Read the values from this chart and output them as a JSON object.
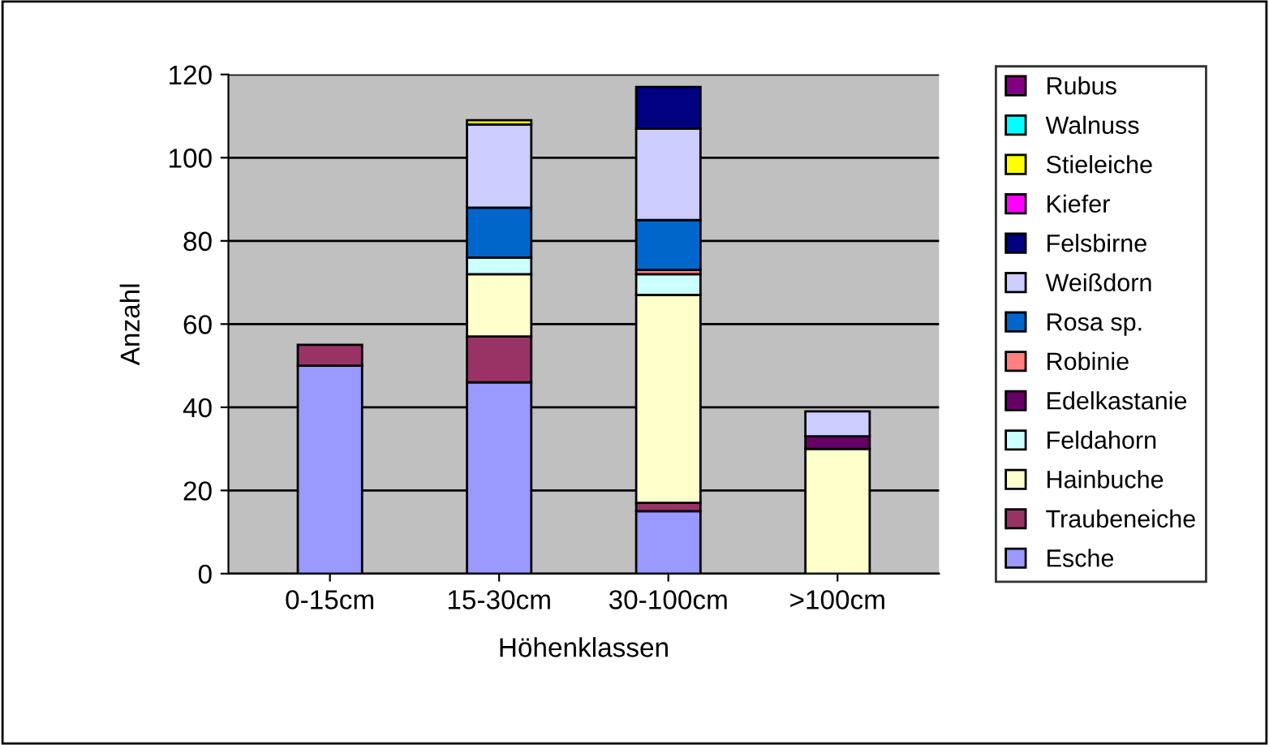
{
  "chart_data": {
    "type": "bar",
    "stacked": true,
    "xlabel": "Höhenklassen",
    "ylabel": "Anzahl",
    "categories": [
      "0-15cm",
      "15-30cm",
      "30-100cm",
      ">100cm"
    ],
    "series": [
      {
        "name": "Esche",
        "color": "#9999ff",
        "values": [
          50,
          46,
          15,
          0
        ]
      },
      {
        "name": "Traubeneiche",
        "color": "#993366",
        "values": [
          5,
          11,
          2,
          0
        ]
      },
      {
        "name": "Hainbuche",
        "color": "#ffffcc",
        "values": [
          0,
          15,
          50,
          30
        ]
      },
      {
        "name": "Feldahorn",
        "color": "#ccffff",
        "values": [
          0,
          4,
          5,
          0
        ]
      },
      {
        "name": "Edelkastanie",
        "color": "#660066",
        "values": [
          0,
          0,
          0,
          3
        ]
      },
      {
        "name": "Robinie",
        "color": "#ff8080",
        "values": [
          0,
          0,
          1,
          0
        ]
      },
      {
        "name": "Rosa sp.",
        "color": "#0066cc",
        "values": [
          0,
          12,
          12,
          0
        ]
      },
      {
        "name": "Weißdorn",
        "color": "#ccccff",
        "values": [
          0,
          20,
          22,
          6
        ]
      },
      {
        "name": "Felsbirne",
        "color": "#000080",
        "values": [
          0,
          0,
          10,
          0
        ]
      },
      {
        "name": "Kiefer",
        "color": "#ff00ff",
        "values": [
          0,
          0,
          0,
          0
        ]
      },
      {
        "name": "Stieleiche",
        "color": "#ffff00",
        "values": [
          0,
          1,
          0,
          0
        ]
      },
      {
        "name": "Walnuss",
        "color": "#00ffff",
        "values": [
          0,
          0,
          0,
          0
        ]
      },
      {
        "name": "Rubus",
        "color": "#800080",
        "values": [
          0,
          0,
          0,
          0
        ]
      }
    ],
    "ylim": [
      0,
      120
    ],
    "yticks": [
      0,
      20,
      40,
      60,
      80,
      100,
      120
    ],
    "grid": "y",
    "legend": "right"
  }
}
